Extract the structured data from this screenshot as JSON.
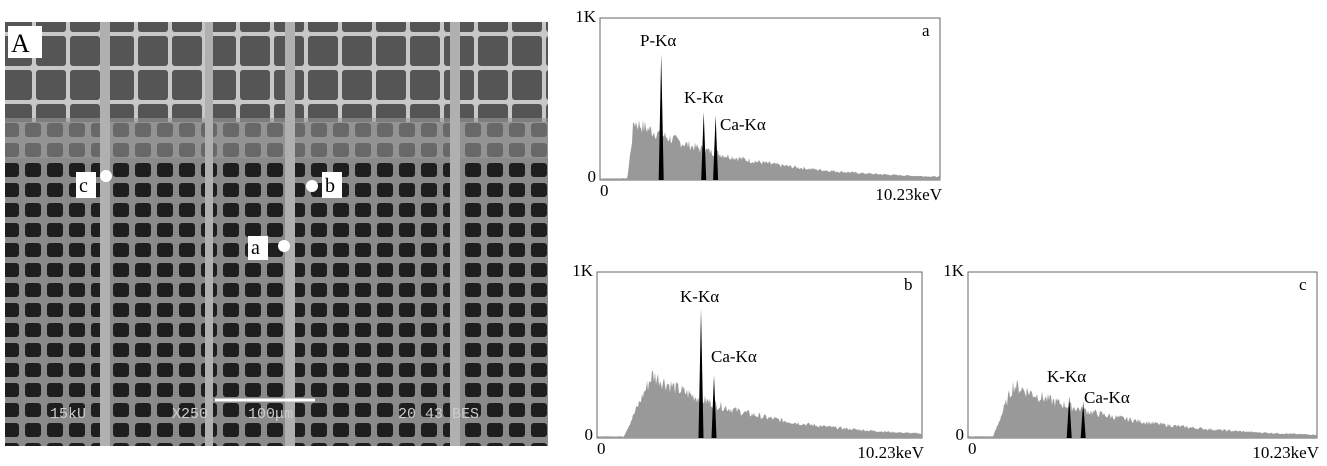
{
  "micrograph": {
    "panel": "A",
    "points": [
      "a",
      "b",
      "c"
    ],
    "caption": {
      "voltage": "15kU",
      "magnification": "X250",
      "scale": "100μm",
      "info": "20 43 BES"
    }
  },
  "spectra": [
    {
      "panel": "a",
      "ymax": "1K",
      "ymin": "0",
      "xmin": "0",
      "xmax": "10.23keV",
      "peaks": [
        "P-Kα",
        "K-Kα",
        "Ca-Kα"
      ]
    },
    {
      "panel": "b",
      "ymax": "1K",
      "ymin": "0",
      "xmin": "0",
      "xmax": "10.23keV",
      "peaks": [
        "K-Kα",
        "Ca-Kα"
      ]
    },
    {
      "panel": "c",
      "ymax": "1K",
      "ymin": "0",
      "xmin": "0",
      "xmax": "10.23keV",
      "peaks": [
        "K-Kα",
        "Ca-Kα"
      ]
    }
  ]
}
